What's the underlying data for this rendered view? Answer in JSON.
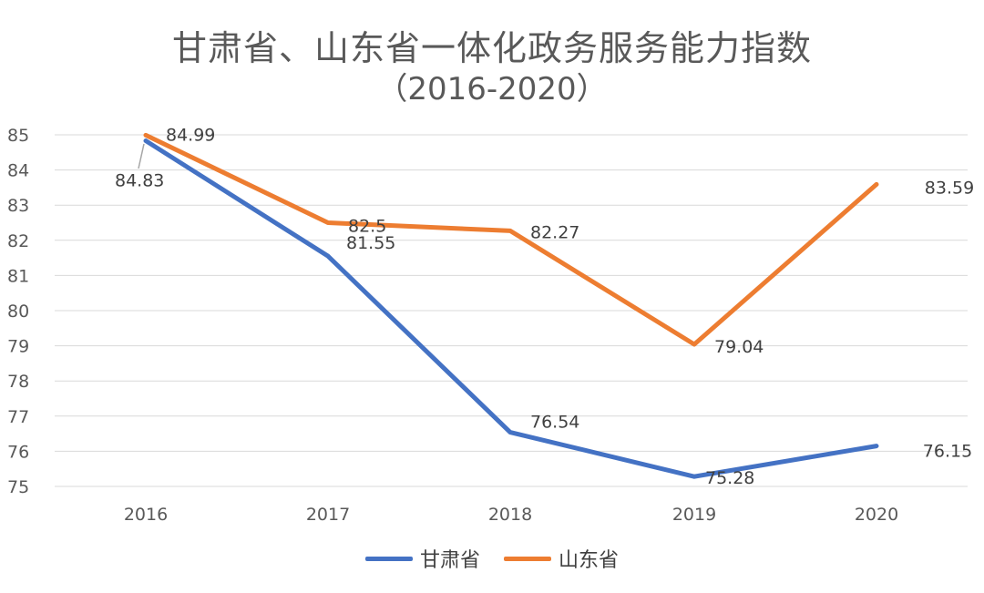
{
  "chart_data": {
    "type": "line",
    "title": "甘肃省、山东省一体化政务服务能力指数",
    "subtitle": "（2016-2020）",
    "categories": [
      "2016",
      "2017",
      "2018",
      "2019",
      "2020"
    ],
    "ylim": [
      75,
      85
    ],
    "yticks": [
      "75",
      "76",
      "77",
      "78",
      "79",
      "80",
      "81",
      "82",
      "83",
      "84",
      "85"
    ],
    "grid": true,
    "legend_position": "bottom",
    "series": [
      {
        "name": "甘肃省",
        "color": "#4472C4",
        "values": [
          84.83,
          81.55,
          76.54,
          75.28,
          76.15
        ],
        "labels": [
          "84.83",
          "81.55",
          "76.54",
          "75.28",
          "76.15"
        ]
      },
      {
        "name": "山东省",
        "color": "#ED7D31",
        "values": [
          84.99,
          82.5,
          82.27,
          79.04,
          83.59
        ],
        "labels": [
          "84.99",
          "82.5",
          "82.27",
          "79.04",
          "83.59"
        ]
      }
    ]
  }
}
